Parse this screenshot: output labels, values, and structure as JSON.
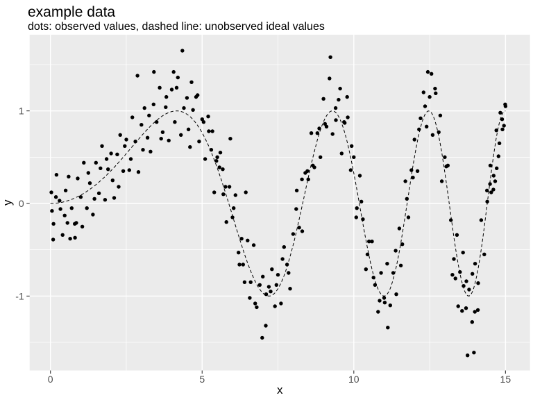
{
  "header": {
    "title": "example data",
    "subtitle": "dots: observed values, dashed line: unobserved ideal values"
  },
  "style": {
    "page_bg": "#FFFFFF",
    "panel_bg": "#EBEBEB",
    "grid_color": "#FFFFFF",
    "point_color": "#000000",
    "curve_color": "#000000",
    "tick_label_color": "#4D4D4D",
    "tick_mark_color": "#333333",
    "axis_title_color": "#000000"
  },
  "chart_data": {
    "type": "scatter",
    "title": "example data",
    "subtitle": "dots: observed values, dashed line: unobserved ideal values",
    "xlabel": "x",
    "ylabel": "y",
    "x_ticks": [
      0,
      5,
      10,
      15
    ],
    "y_ticks": [
      -1,
      0,
      1
    ],
    "x_minor_ticks": [
      2.5,
      7.5,
      12.5
    ],
    "y_minor_ticks": [
      -1.5,
      -0.5,
      0.5,
      1.5
    ],
    "xlim": [
      -0.69,
      15.81
    ],
    "ylim": [
      -1.8,
      1.82
    ],
    "grid": true,
    "legend_position": "none",
    "ideal_curve": {
      "label": "unobserved ideal values",
      "style": "dashed",
      "formula": "y = sin(x^2 / 11)",
      "phase_divisor": 11,
      "x_min": 0,
      "x_max": 15
    },
    "points_label": "observed values",
    "points": [
      [
        0.03,
        0.12
      ],
      [
        0.1,
        -0.22
      ],
      [
        0.2,
        0.31
      ],
      [
        0.3,
        0.03
      ],
      [
        0.4,
        -0.34
      ],
      [
        0.5,
        0.14
      ],
      [
        0.6,
        0.29
      ],
      [
        0.7,
        -0.05
      ],
      [
        0.8,
        -0.22
      ],
      [
        0.9,
        0.27
      ],
      [
        1.0,
        0.07
      ],
      [
        1.1,
        0.44
      ],
      [
        1.2,
        -0.05
      ],
      [
        1.3,
        0.22
      ],
      [
        1.4,
        -0.12
      ],
      [
        1.5,
        0.44
      ],
      [
        1.6,
        0.11
      ],
      [
        1.7,
        0.62
      ],
      [
        1.8,
        0.04
      ],
      [
        1.9,
        0.37
      ],
      [
        2.0,
        0.54
      ],
      [
        2.1,
        0.06
      ],
      [
        2.2,
        0.53
      ],
      [
        2.3,
        0.74
      ],
      [
        2.4,
        0.35
      ],
      [
        2.5,
        0.69
      ],
      [
        2.6,
        0.36
      ],
      [
        2.7,
        0.93
      ],
      [
        2.8,
        0.67
      ],
      [
        2.9,
        0.34
      ],
      [
        3.0,
        0.85
      ],
      [
        3.1,
        1.03
      ],
      [
        3.2,
        0.71
      ],
      [
        3.3,
        0.56
      ],
      [
        3.4,
        1.07
      ],
      [
        3.5,
        0.88
      ],
      [
        3.6,
        1.25
      ],
      [
        3.7,
        0.77
      ],
      [
        3.8,
        1.04
      ],
      [
        3.9,
        0.68
      ],
      [
        4.0,
        1.23
      ],
      [
        4.1,
        0.88
      ],
      [
        4.2,
        1.36
      ],
      [
        4.3,
        0.74
      ],
      [
        4.4,
        1.03
      ],
      [
        4.5,
        1.14
      ],
      [
        4.6,
        0.61
      ],
      [
        4.7,
        1.01
      ],
      [
        4.8,
        1.15
      ],
      [
        4.9,
        0.67
      ],
      [
        5.0,
        0.91
      ],
      [
        5.1,
        0.48
      ],
      [
        5.2,
        0.94
      ],
      [
        5.3,
        0.58
      ],
      [
        5.4,
        0.12
      ],
      [
        5.5,
        0.5
      ],
      [
        5.6,
        0.55
      ],
      [
        5.7,
        0.1
      ],
      [
        5.8,
        -0.2
      ],
      [
        5.9,
        0.18
      ],
      [
        6.0,
        -0.15
      ],
      [
        6.1,
        0.09
      ],
      [
        6.2,
        -0.53
      ],
      [
        6.3,
        -0.38
      ],
      [
        6.4,
        -0.85
      ],
      [
        6.5,
        -0.4
      ],
      [
        6.6,
        -0.85
      ],
      [
        6.7,
        -0.45
      ],
      [
        6.8,
        -1.12
      ],
      [
        6.9,
        -0.88
      ],
      [
        7.0,
        -0.79
      ],
      [
        7.1,
        -1.32
      ],
      [
        7.2,
        -0.9
      ],
      [
        7.3,
        -0.71
      ],
      [
        7.4,
        -1.11
      ],
      [
        7.5,
        -0.77
      ],
      [
        7.6,
        -1.08
      ],
      [
        7.7,
        -0.47
      ],
      [
        7.8,
        -0.66
      ],
      [
        7.9,
        -0.92
      ],
      [
        8.0,
        -0.33
      ],
      [
        8.1,
        -0.06
      ],
      [
        8.2,
        -0.26
      ],
      [
        8.3,
        -0.3
      ],
      [
        8.4,
        0.33
      ],
      [
        8.5,
        0.26
      ],
      [
        8.6,
        0.76
      ],
      [
        8.7,
        0.39
      ],
      [
        8.8,
        0.76
      ],
      [
        8.9,
        0.5
      ],
      [
        9.0,
        1.13
      ],
      [
        9.1,
        0.83
      ],
      [
        9.2,
        1.35
      ],
      [
        9.3,
        0.75
      ],
      [
        9.4,
        1.03
      ],
      [
        9.5,
        1.12
      ],
      [
        9.6,
        0.54
      ],
      [
        9.7,
        0.87
      ],
      [
        9.8,
        0.93
      ],
      [
        9.9,
        0.36
      ],
      [
        10.0,
        0.5
      ],
      [
        10.1,
        -0.05
      ],
      [
        10.2,
        0.3
      ],
      [
        10.3,
        -0.17
      ],
      [
        10.4,
        -0.71
      ],
      [
        10.5,
        -0.41
      ],
      [
        10.6,
        -0.41
      ],
      [
        10.7,
        -0.88
      ],
      [
        10.8,
        -1.17
      ],
      [
        10.9,
        -0.75
      ],
      [
        11.0,
        -1.02
      ],
      [
        11.1,
        -0.65
      ],
      [
        11.2,
        -1.1
      ],
      [
        11.3,
        -0.75
      ],
      [
        11.4,
        -0.98
      ],
      [
        11.5,
        -0.27
      ],
      [
        11.6,
        -0.44
      ],
      [
        11.7,
        0.24
      ],
      [
        11.8,
        -0.15
      ],
      [
        11.9,
        0.36
      ],
      [
        12.0,
        0.69
      ],
      [
        12.1,
        0.35
      ],
      [
        12.2,
        0.92
      ],
      [
        12.3,
        1.2
      ],
      [
        12.4,
        0.83
      ],
      [
        12.5,
        1.15
      ],
      [
        12.6,
        0.74
      ],
      [
        12.7,
        1.19
      ],
      [
        12.8,
        0.77
      ],
      [
        12.9,
        0.24
      ],
      [
        13.0,
        0.5
      ],
      [
        13.1,
        0.41
      ],
      [
        13.2,
        -0.18
      ],
      [
        13.3,
        -0.6
      ],
      [
        13.4,
        -0.34
      ],
      [
        13.5,
        -0.74
      ],
      [
        13.6,
        -0.53
      ],
      [
        13.7,
        -1.13
      ],
      [
        13.8,
        -0.93
      ],
      [
        13.9,
        -1.28
      ],
      [
        14.0,
        -0.65
      ],
      [
        14.1,
        -0.86
      ],
      [
        14.2,
        -0.18
      ],
      [
        14.3,
        -0.55
      ],
      [
        14.4,
        0.02
      ],
      [
        14.5,
        0.41
      ],
      [
        14.6,
        0.15
      ],
      [
        14.7,
        0.79
      ],
      [
        14.8,
        0.65
      ],
      [
        14.9,
        0.8
      ],
      [
        15.0,
        1.05
      ],
      [
        0.05,
        -0.08
      ],
      [
        0.09,
        -0.39
      ],
      [
        0.18,
        0.07
      ],
      [
        0.33,
        -0.06
      ],
      [
        0.47,
        -0.13
      ],
      [
        0.56,
        -0.21
      ],
      [
        0.65,
        -0.38
      ],
      [
        0.81,
        -0.37
      ],
      [
        0.85,
        -0.21
      ],
      [
        1.05,
        -0.25
      ],
      [
        1.25,
        0.33
      ],
      [
        1.45,
        0.05
      ],
      [
        1.65,
        0.38
      ],
      [
        1.85,
        0.48
      ],
      [
        2.05,
        0.25
      ],
      [
        2.25,
        0.18
      ],
      [
        2.45,
        0.62
      ],
      [
        2.65,
        0.48
      ],
      [
        2.87,
        1.38
      ],
      [
        3.05,
        0.58
      ],
      [
        3.25,
        0.95
      ],
      [
        3.41,
        1.42
      ],
      [
        3.65,
        0.7
      ],
      [
        3.82,
        1.15
      ],
      [
        4.06,
        1.42
      ],
      [
        4.16,
        1.25
      ],
      [
        4.35,
        1.65
      ],
      [
        4.55,
        0.8
      ],
      [
        4.65,
        1.31
      ],
      [
        4.85,
        1.17
      ],
      [
        5.05,
        0.88
      ],
      [
        5.22,
        0.78
      ],
      [
        5.34,
        0.78
      ],
      [
        5.47,
        0.46
      ],
      [
        5.57,
        0.39
      ],
      [
        5.68,
        0.37
      ],
      [
        5.77,
        0.18
      ],
      [
        5.93,
        0.7
      ],
      [
        6.04,
        -0.05
      ],
      [
        6.23,
        -0.66
      ],
      [
        6.35,
        -0.66
      ],
      [
        6.44,
        0.12
      ],
      [
        6.57,
        -1.02
      ],
      [
        6.75,
        -1.08
      ],
      [
        6.98,
        -1.45
      ],
      [
        7.11,
        -0.98
      ],
      [
        7.26,
        -0.95
      ],
      [
        7.45,
        -0.88
      ],
      [
        7.65,
        -0.6
      ],
      [
        7.85,
        -0.75
      ],
      [
        8.12,
        0.14
      ],
      [
        8.29,
        0.26
      ],
      [
        8.47,
        0.35
      ],
      [
        8.65,
        0.41
      ],
      [
        8.86,
        0.81
      ],
      [
        9.05,
        0.86
      ],
      [
        9.23,
        1.58
      ],
      [
        9.41,
        0.9
      ],
      [
        9.55,
        1.24
      ],
      [
        9.68,
        0.88
      ],
      [
        9.78,
        1.15
      ],
      [
        9.93,
        0.62
      ],
      [
        10.08,
        -0.15
      ],
      [
        10.25,
        0.02
      ],
      [
        10.45,
        -0.55
      ],
      [
        10.65,
        -0.8
      ],
      [
        10.85,
        -1.05
      ],
      [
        11.02,
        -1.07
      ],
      [
        11.12,
        -1.34
      ],
      [
        11.38,
        -0.51
      ],
      [
        11.55,
        -0.67
      ],
      [
        11.75,
        0.05
      ],
      [
        11.95,
        0.28
      ],
      [
        12.15,
        0.8
      ],
      [
        12.35,
        1.05
      ],
      [
        12.44,
        1.42
      ],
      [
        12.56,
        1.4
      ],
      [
        12.68,
        1.24
      ],
      [
        12.85,
        0.95
      ],
      [
        13.05,
        0.4
      ],
      [
        13.25,
        -0.77
      ],
      [
        13.35,
        -0.81
      ],
      [
        13.44,
        -1.11
      ],
      [
        13.57,
        -1.16
      ],
      [
        13.62,
        -0.89
      ],
      [
        13.71,
        -0.84
      ],
      [
        13.75,
        -1.64
      ],
      [
        13.91,
        -0.76
      ],
      [
        13.96,
        -1.61
      ],
      [
        13.99,
        -1.17
      ],
      [
        14.09,
        -1.15
      ],
      [
        14.39,
        0.14
      ],
      [
        14.49,
        0.21
      ],
      [
        14.53,
        0.12
      ],
      [
        14.61,
        0.3
      ],
      [
        14.66,
        0.24
      ],
      [
        14.71,
        0.38
      ],
      [
        14.77,
        0.51
      ],
      [
        14.83,
        0.98
      ],
      [
        14.89,
        0.91
      ],
      [
        14.95,
        0.84
      ],
      [
        14.99,
        1.07
      ]
    ]
  }
}
